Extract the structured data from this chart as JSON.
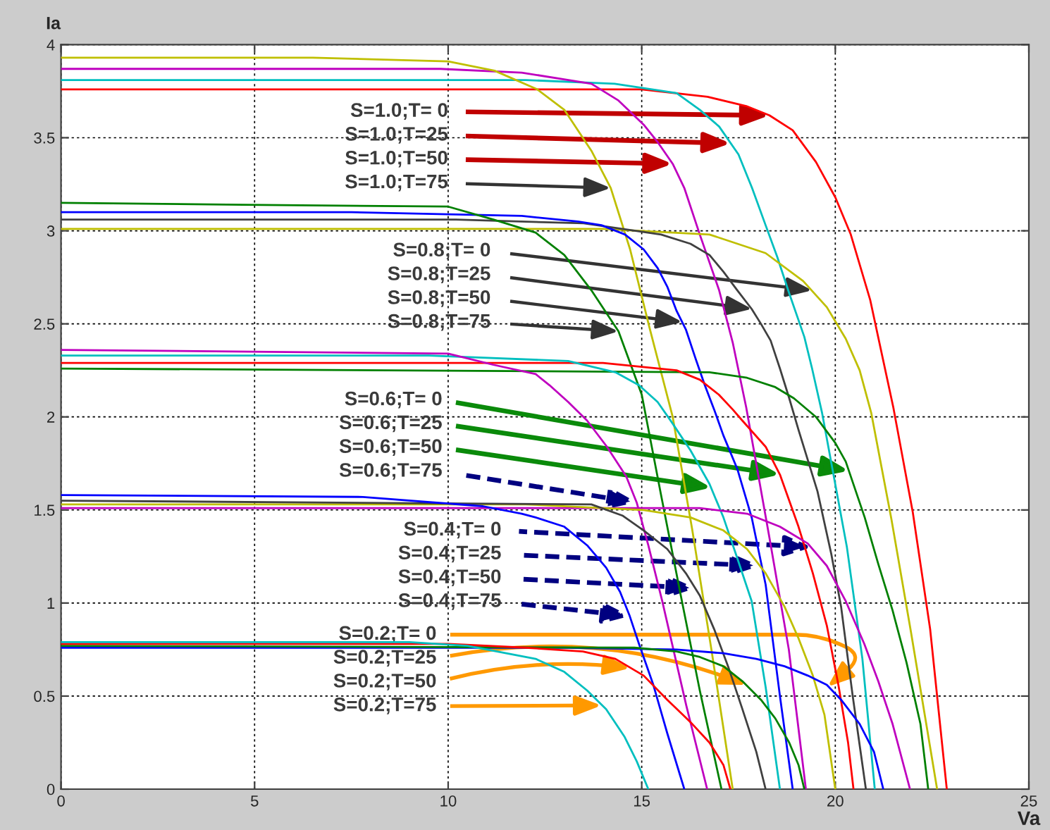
{
  "chart_data": {
    "type": "line",
    "xlabel": "Va",
    "ylabel": "Ia",
    "xlim": [
      0,
      25
    ],
    "ylim": [
      0,
      4
    ],
    "xticks": [
      0,
      5,
      10,
      15,
      20,
      25
    ],
    "yticks": [
      0,
      0.5,
      1,
      1.5,
      2,
      2.5,
      3,
      3.5,
      4
    ],
    "grid": true,
    "series": [
      {
        "color": "#ff0000",
        "x": [
          0,
          15,
          16.7,
          17.7,
          18.3,
          18.9,
          19.5,
          20,
          20.4,
          20.9,
          21.5,
          22,
          22.45,
          22.88
        ],
        "values": [
          3.76,
          3.76,
          3.72,
          3.67,
          3.62,
          3.54,
          3.37,
          3.18,
          2.98,
          2.63,
          2.05,
          1.49,
          0.86,
          0
        ]
      },
      {
        "color": "#00bfbf",
        "x": [
          0,
          12,
          14.3,
          15.9,
          16.5,
          17,
          17.5,
          17.85,
          18.2,
          18.5,
          18.8,
          19.2,
          19.4,
          19.66,
          20.3,
          20.7,
          21.02
        ],
        "values": [
          3.81,
          3.81,
          3.79,
          3.74,
          3.65,
          3.56,
          3.41,
          3.23,
          3.03,
          2.86,
          2.67,
          2.43,
          2.26,
          2.02,
          1.3,
          0.7,
          0
        ]
      },
      {
        "color": "#bf00bf",
        "x": [
          0,
          9.8,
          11.9,
          13.7,
          14.4,
          15.05,
          15.4,
          15.8,
          16.1,
          16.5,
          17,
          17.35,
          17.7,
          18.3,
          18.8,
          19.24
        ],
        "values": [
          3.87,
          3.87,
          3.85,
          3.79,
          3.7,
          3.57,
          3.48,
          3.36,
          3.23,
          2.98,
          2.68,
          2.4,
          2.05,
          1.35,
          0.75,
          0
        ]
      },
      {
        "color": "#bfbf00",
        "x": [
          0,
          6.5,
          10,
          11.2,
          12.3,
          13,
          13.7,
          14.2,
          14.7,
          15.2,
          15.8,
          16.3,
          16.8,
          17.35
        ],
        "values": [
          3.93,
          3.93,
          3.91,
          3.86,
          3.76,
          3.65,
          3.43,
          3.23,
          2.9,
          2.48,
          2,
          1.4,
          0.75,
          0
        ]
      },
      {
        "color": "#bfbf00",
        "x": [
          0,
          14,
          16.75,
          18.2,
          19.17,
          19.78,
          20.27,
          20.63,
          20.93,
          21.45,
          21.95,
          22.63
        ],
        "values": [
          3.01,
          3.01,
          2.98,
          2.88,
          2.73,
          2.59,
          2.42,
          2.25,
          2.02,
          1.45,
          0.85,
          0
        ]
      },
      {
        "color": "#404040",
        "x": [
          0,
          10.2,
          13.5,
          15.5,
          16.26,
          16.75,
          17.11,
          17.47,
          17.84,
          18.08,
          18.33,
          18.57,
          18.81,
          19.05,
          19.54,
          19.9,
          20.15,
          20.45,
          20.79
        ],
        "values": [
          3.06,
          3.06,
          3.04,
          2.98,
          2.93,
          2.87,
          2.78,
          2.68,
          2.58,
          2.5,
          2.41,
          2.26,
          2.1,
          1.93,
          1.6,
          1.26,
          0.98,
          0.5,
          0
        ]
      },
      {
        "color": "#0000ff",
        "x": [
          0,
          7.5,
          11.9,
          13.35,
          13.96,
          14.57,
          15.05,
          15.41,
          15.66,
          15.9,
          16.14,
          16.38,
          16.63,
          16.87,
          17.11,
          17.47,
          17.84,
          18.2,
          18.57,
          18.9
        ],
        "values": [
          3.1,
          3.1,
          3.08,
          3.05,
          3.03,
          2.98,
          2.9,
          2.8,
          2.7,
          2.57,
          2.47,
          2.32,
          2.17,
          2.04,
          1.9,
          1.72,
          1.46,
          1.1,
          0.5,
          0
        ]
      },
      {
        "color": "#008000",
        "x": [
          0,
          4.7,
          10,
          11.17,
          12.26,
          13,
          13.7,
          14.4,
          15,
          15.5,
          16,
          16.5,
          17.06
        ],
        "values": [
          3.15,
          3.14,
          3.13,
          3.06,
          2.99,
          2.87,
          2.68,
          2.46,
          2.12,
          1.58,
          1.05,
          0.53,
          0
        ]
      },
      {
        "color": "#008000",
        "x": [
          0,
          16.75,
          17.72,
          18.45,
          18.93,
          19.5,
          20,
          20.27,
          20.76,
          21.11,
          21.48,
          21.84,
          22.2,
          22.4
        ],
        "values": [
          2.26,
          2.24,
          2.21,
          2.16,
          2.1,
          2,
          1.86,
          1.76,
          1.46,
          1.21,
          0.96,
          0.68,
          0.35,
          0
        ]
      },
      {
        "color": "#ff0000",
        "x": [
          0,
          14,
          15.9,
          16.5,
          16.99,
          17.35,
          17.6,
          18.2,
          18.57,
          19.05,
          19.42,
          19.78,
          20.08,
          20.33,
          20.47
        ],
        "values": [
          2.29,
          2.29,
          2.25,
          2.2,
          2.12,
          2.04,
          1.98,
          1.84,
          1.69,
          1.41,
          1.16,
          0.88,
          0.56,
          0.25,
          0
        ]
      },
      {
        "color": "#00bfbf",
        "x": [
          0,
          9.5,
          13.1,
          14.32,
          14.93,
          15.41,
          15.78,
          16.26,
          16.75,
          17.11,
          17.47,
          17.84,
          18.2,
          18.57
        ],
        "values": [
          2.33,
          2.33,
          2.3,
          2.24,
          2.17,
          2.08,
          1.97,
          1.82,
          1.64,
          1.46,
          1.24,
          1.01,
          0.55,
          0
        ]
      },
      {
        "color": "#bf00bf",
        "x": [
          0,
          10,
          11.17,
          12.26,
          12.62,
          13.1,
          13.59,
          14.1,
          14.6,
          14.87,
          15.17,
          15.53,
          16.15,
          16.69
        ],
        "values": [
          2.36,
          2.34,
          2.28,
          2.23,
          2.17,
          2.08,
          1.98,
          1.84,
          1.68,
          1.54,
          1.31,
          1.01,
          0.45,
          0
        ]
      },
      {
        "color": "#bf00bf",
        "x": [
          0,
          16.5,
          17.72,
          18.57,
          19.29,
          19.78,
          20.27,
          20.75,
          21.11,
          21.48,
          21.93
        ],
        "values": [
          1.51,
          1.51,
          1.48,
          1.41,
          1.32,
          1.2,
          1.01,
          0.78,
          0.58,
          0.35,
          0
        ]
      },
      {
        "color": "#bfbf00",
        "x": [
          0,
          12,
          15.05,
          16.26,
          17.11,
          17.72,
          18.2,
          18.69,
          19.05,
          19.42,
          19.72,
          20
        ],
        "values": [
          1.53,
          1.53,
          1.5,
          1.46,
          1.39,
          1.29,
          1.16,
          0.98,
          0.81,
          0.61,
          0.4,
          0
        ]
      },
      {
        "color": "#404040",
        "x": [
          0,
          13.7,
          14.5,
          15.05,
          15.66,
          16.14,
          16.5,
          16.87,
          17.23,
          17.6,
          17.96,
          18.2
        ],
        "values": [
          1.55,
          1.53,
          1.47,
          1.39,
          1.29,
          1.16,
          1.04,
          0.86,
          0.66,
          0.43,
          0.2,
          0
        ]
      },
      {
        "color": "#0000ff",
        "x": [
          0,
          7.8,
          10.9,
          11.9,
          12.26,
          13,
          13.59,
          14.08,
          14.44,
          14.69,
          14.93,
          15.3,
          15.66,
          16.1
        ],
        "values": [
          1.58,
          1.57,
          1.52,
          1.48,
          1.46,
          1.41,
          1.31,
          1.19,
          1.06,
          0.93,
          0.78,
          0.56,
          0.3,
          0
        ]
      },
      {
        "color": "#0000ff",
        "x": [
          0,
          12.98,
          15.9,
          17.11,
          17.96,
          18.69,
          19.29,
          19.78,
          20.15,
          20.63,
          21,
          21.24
        ],
        "values": [
          0.76,
          0.76,
          0.75,
          0.73,
          0.7,
          0.66,
          0.61,
          0.56,
          0.48,
          0.35,
          0.2,
          0
        ]
      },
      {
        "color": "#008000",
        "x": [
          0,
          14.81,
          15.9,
          16.5,
          17.11,
          17.6,
          18.08,
          18.45,
          18.81,
          19.05,
          19.2
        ],
        "values": [
          0.77,
          0.76,
          0.74,
          0.71,
          0.66,
          0.58,
          0.48,
          0.38,
          0.25,
          0.13,
          0
        ]
      },
      {
        "color": "#ff0000",
        "x": [
          0,
          10,
          12,
          13.48,
          14.32,
          15.05,
          15.66,
          16.26,
          16.75,
          17.11,
          17.29
        ],
        "values": [
          0.78,
          0.78,
          0.76,
          0.74,
          0.7,
          0.61,
          0.48,
          0.36,
          0.25,
          0.13,
          0
        ]
      },
      {
        "color": "#00bfbf",
        "x": [
          0,
          9,
          10.5,
          11.5,
          12.26,
          13,
          13.59,
          14.08,
          14.56,
          14.87,
          15.17
        ],
        "values": [
          0.79,
          0.79,
          0.77,
          0.73,
          0.7,
          0.63,
          0.53,
          0.43,
          0.28,
          0.15,
          0
        ]
      }
    ],
    "annotations": [
      {
        "text": "S=1.0;T= 0",
        "x": 18.3,
        "y": 3.62
      },
      {
        "text": "S=1.0;T=25",
        "x": 17.3,
        "y": 3.47
      },
      {
        "text": "S=1.0;T=50",
        "x": 15.8,
        "y": 3.36
      },
      {
        "text": "S=1.0;T=75",
        "x": 14.2,
        "y": 3.23
      },
      {
        "text": "S=0.8;T= 0",
        "x": 19.4,
        "y": 2.68
      },
      {
        "text": "S=0.8;T=25",
        "x": 17.85,
        "y": 2.58
      },
      {
        "text": "S=0.8;T=50",
        "x": 16.05,
        "y": 2.51
      },
      {
        "text": "S=0.8;T=75",
        "x": 14.4,
        "y": 2.46
      },
      {
        "text": "S=0.6;T= 0",
        "x": 20.35,
        "y": 1.71
      },
      {
        "text": "S=0.6;T=25",
        "x": 18.57,
        "y": 1.69
      },
      {
        "text": "S=0.6;T=50",
        "x": 16.8,
        "y": 1.62
      },
      {
        "text": "S=0.6;T=75",
        "x": 14.87,
        "y": 1.54
      },
      {
        "text": "S=0.4;T= 0",
        "x": 19.4,
        "y": 1.3
      },
      {
        "text": "S=0.4;T=25",
        "x": 18.05,
        "y": 1.2
      },
      {
        "text": "S=0.4;T=50",
        "x": 16.4,
        "y": 1.08
      },
      {
        "text": "S=0.4;T=75",
        "x": 14.7,
        "y": 0.93
      },
      {
        "text": "S=0.2;T= 0",
        "x": 19.8,
        "y": 0.55
      },
      {
        "text": "S=0.2;T=25",
        "x": 17.7,
        "y": 0.56
      },
      {
        "text": "S=0.2;T=50",
        "x": 14.7,
        "y": 0.65
      },
      {
        "text": "S=0.2;T=75",
        "x": 13.96,
        "y": 0.45
      }
    ]
  }
}
